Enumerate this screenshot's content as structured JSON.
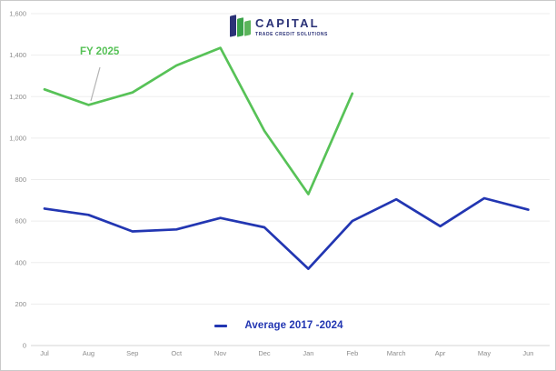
{
  "logo": {
    "name": "CAPITAL",
    "tagline": "TRADE CREDIT SOLUTIONS"
  },
  "annotation": {
    "label": "FY 2025"
  },
  "legend": {
    "label": "Average 2017 -2024"
  },
  "colors": {
    "fy2025_green": "#57c257",
    "average_blue": "#2236b2",
    "logo_navy": "#2b3277",
    "logo_green": "#3ba34a",
    "logo_light_green": "#5bb55b",
    "gridline": "#ededed",
    "axis_line": "#d6d6d6",
    "axis_text": "#8c8c8c",
    "leader_line": "#b3b3b3"
  },
  "chart_data": {
    "type": "line",
    "title": "",
    "categories": [
      "Jul",
      "Aug",
      "Sep",
      "Oct",
      "Nov",
      "Dec",
      "Jan",
      "Feb",
      "March",
      "Apr",
      "May",
      "Jun"
    ],
    "series": [
      {
        "name": "FY 2025",
        "color": "#57c257",
        "values": [
          1235,
          1160,
          1220,
          1350,
          1435,
          1035,
          730,
          1215,
          null,
          null,
          null,
          null
        ]
      },
      {
        "name": "Average 2017 -2024",
        "color": "#2236b2",
        "values": [
          660,
          630,
          550,
          560,
          615,
          570,
          370,
          600,
          705,
          575,
          710,
          655
        ]
      }
    ],
    "xlabel": "",
    "ylabel": "",
    "ylim": [
      0,
      1600
    ],
    "ytick_step": 200,
    "ytick_labels": [
      "0",
      "200",
      "400",
      "600",
      "800",
      "1,000",
      "1,200",
      "1,400",
      "1,600"
    ],
    "grid": true,
    "legend_position": "bottom"
  }
}
